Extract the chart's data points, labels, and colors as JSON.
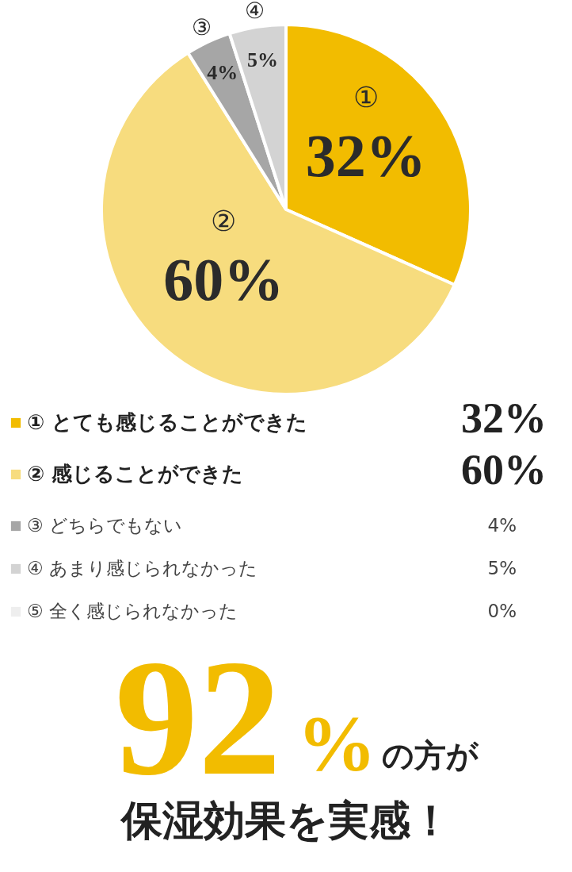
{
  "chart_data": {
    "type": "pie",
    "categories": [
      "① とても感じることができた",
      "② 感じることができた",
      "③ どちらでもない",
      "④ あまり感じられなかった",
      "⑤ 全く感じられなかった"
    ],
    "values": [
      32,
      60,
      4,
      5,
      0
    ],
    "value_labels": [
      "32%",
      "60%",
      "4%",
      "5%",
      "0%"
    ],
    "legend": "bottom",
    "colors": [
      "#f2bc00",
      "#f7dc7e",
      "#a6a6a6",
      "#d3d3d3",
      "#eeeeee"
    ],
    "annotations": [
      "92%",
      "の方が",
      "保湿効果を実感！",
      {
        "text": "①",
        "x": "① とても感じることができた"
      },
      {
        "text": "②",
        "x": "② 感じることができた"
      },
      {
        "text": "③",
        "x": "③ どちらでもない"
      },
      {
        "text": "④",
        "x": "④ あまり感じられなかった"
      }
    ]
  }
}
